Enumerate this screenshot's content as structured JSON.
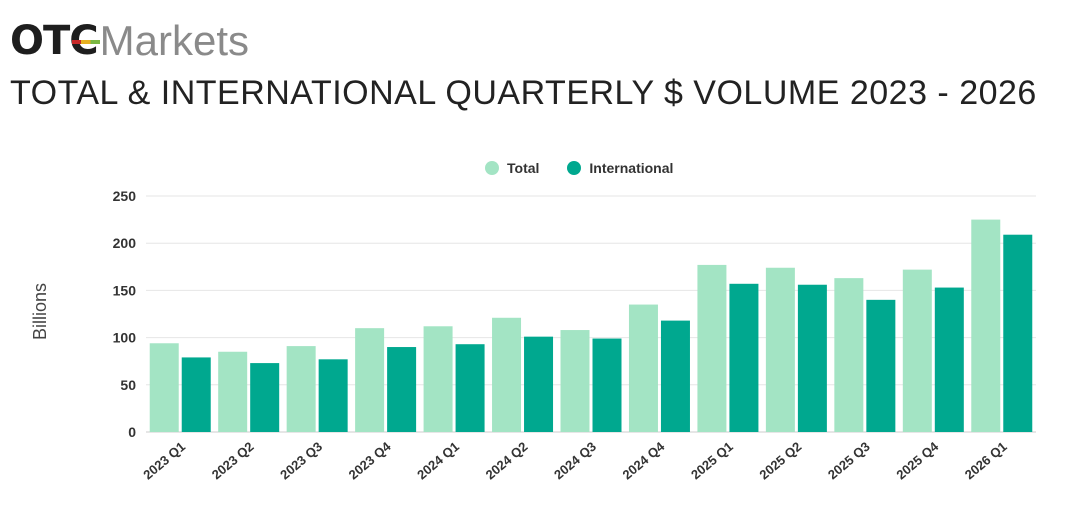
{
  "header": {
    "logo_otc": "OTC",
    "logo_markets": "Markets",
    "title": "TOTAL & INTERNATIONAL QUARTERLY $ VOLUME 2023 - 2026"
  },
  "colors": {
    "total": "#a3e4c4",
    "international": "#00a88f",
    "grid": "#e6e6e6"
  },
  "chart_data": {
    "type": "bar",
    "title": "TOTAL & INTERNATIONAL QUARTERLY $ VOLUME 2023 - 2026",
    "xlabel": "",
    "ylabel": "Billions",
    "ylim": [
      0,
      250
    ],
    "yticks": [
      0,
      50,
      100,
      150,
      200,
      250
    ],
    "legend_position": "top-center",
    "categories": [
      "2023 Q1",
      "2023 Q2",
      "2023 Q3",
      "2023 Q4",
      "2024 Q1",
      "2024 Q2",
      "2024 Q3",
      "2024 Q4",
      "2025 Q1",
      "2025 Q2",
      "2025 Q3",
      "2025 Q4",
      "2026 Q1"
    ],
    "series": [
      {
        "name": "Total",
        "values": [
          94,
          85,
          91,
          110,
          112,
          121,
          108,
          135,
          177,
          174,
          163,
          172,
          225
        ]
      },
      {
        "name": "International",
        "values": [
          79,
          73,
          77,
          90,
          93,
          101,
          99,
          118,
          157,
          156,
          140,
          153,
          209
        ]
      }
    ]
  }
}
